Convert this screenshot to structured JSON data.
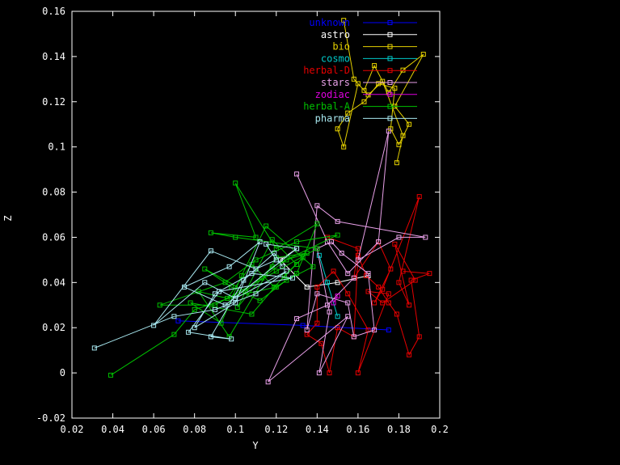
{
  "chart_data": {
    "type": "line",
    "title": "",
    "xlabel": "Y",
    "ylabel": "Z",
    "xlim": [
      0.02,
      0.2
    ],
    "ylim": [
      -0.02,
      0.16
    ],
    "x_ticks": [
      "0.02",
      "0.04",
      "0.06",
      "0.08",
      "0.1",
      "0.12",
      "0.14",
      "0.16",
      "0.18",
      "0.2"
    ],
    "y_ticks": [
      "-0.02",
      "0",
      "0.02",
      "0.04",
      "0.06",
      "0.08",
      "0.1",
      "0.12",
      "0.14",
      "0.16"
    ],
    "grid": false,
    "legend_position": "top-right",
    "background": "#000000",
    "series": [
      {
        "name": "unknown",
        "color": "#0000ff",
        "points": [
          [
            0.072,
            0.023
          ],
          [
            0.133,
            0.021
          ],
          [
            0.175,
            0.019
          ]
        ]
      },
      {
        "name": "astro",
        "color": "#ffffff",
        "points": [
          [
            0.13,
            0.055
          ],
          [
            0.122,
            0.05
          ],
          [
            0.135,
            0.038
          ],
          [
            0.15,
            0.04
          ],
          [
            0.165,
            0.043
          ]
        ]
      },
      {
        "name": "bio",
        "color": "#e5d100",
        "points": [
          [
            0.153,
            0.156
          ],
          [
            0.158,
            0.13
          ],
          [
            0.163,
            0.125
          ],
          [
            0.168,
            0.136
          ],
          [
            0.175,
            0.124
          ],
          [
            0.182,
            0.134
          ],
          [
            0.192,
            0.141
          ],
          [
            0.178,
            0.118
          ],
          [
            0.185,
            0.11
          ],
          [
            0.18,
            0.101
          ],
          [
            0.176,
            0.108
          ],
          [
            0.178,
            0.126
          ],
          [
            0.17,
            0.128
          ],
          [
            0.163,
            0.12
          ],
          [
            0.155,
            0.115
          ],
          [
            0.15,
            0.108
          ],
          [
            0.153,
            0.1
          ],
          [
            0.16,
            0.128
          ],
          [
            0.165,
            0.123
          ],
          [
            0.172,
            0.129
          ],
          [
            0.182,
            0.105
          ],
          [
            0.179,
            0.093
          ]
        ]
      },
      {
        "name": "cosmo",
        "color": "#00c8c8",
        "points": [
          [
            0.15,
            0.025
          ],
          [
            0.145,
            0.04
          ],
          [
            0.141,
            0.052
          ]
        ]
      },
      {
        "name": "herbal-D",
        "color": "#e60000",
        "points": [
          [
            0.145,
            0.06
          ],
          [
            0.16,
            0.055
          ],
          [
            0.158,
            0.042
          ],
          [
            0.17,
            0.058
          ],
          [
            0.176,
            0.046
          ],
          [
            0.168,
            0.031
          ],
          [
            0.172,
            0.037
          ],
          [
            0.19,
            0.078
          ],
          [
            0.18,
            0.04
          ],
          [
            0.185,
            0.03
          ],
          [
            0.178,
            0.057
          ],
          [
            0.188,
            0.041
          ],
          [
            0.172,
            0.031
          ],
          [
            0.165,
            0.036
          ],
          [
            0.175,
            0.035
          ],
          [
            0.16,
            0.0
          ],
          [
            0.165,
            0.019
          ],
          [
            0.155,
            0.035
          ],
          [
            0.148,
            0.045
          ],
          [
            0.14,
            0.038
          ],
          [
            0.14,
            0.022
          ],
          [
            0.135,
            0.017
          ],
          [
            0.142,
            0.013
          ],
          [
            0.146,
            0.0
          ],
          [
            0.15,
            0.02
          ],
          [
            0.158,
            0.016
          ],
          [
            0.16,
            0.052
          ],
          [
            0.164,
            0.043
          ],
          [
            0.17,
            0.038
          ],
          [
            0.175,
            0.031
          ],
          [
            0.179,
            0.026
          ],
          [
            0.185,
            0.008
          ],
          [
            0.19,
            0.016
          ],
          [
            0.186,
            0.041
          ],
          [
            0.195,
            0.044
          ],
          [
            0.182,
            0.045
          ]
        ]
      },
      {
        "name": "stars",
        "color": "#e8a0e8",
        "points": [
          [
            0.13,
            0.088
          ],
          [
            0.145,
            0.058
          ],
          [
            0.155,
            0.044
          ],
          [
            0.17,
            0.058
          ],
          [
            0.175,
            0.107
          ],
          [
            0.16,
            0.05
          ],
          [
            0.18,
            0.06
          ],
          [
            0.193,
            0.06
          ],
          [
            0.15,
            0.067
          ],
          [
            0.14,
            0.074
          ],
          [
            0.135,
            0.019
          ],
          [
            0.14,
            0.035
          ],
          [
            0.155,
            0.031
          ],
          [
            0.158,
            0.016
          ],
          [
            0.168,
            0.019
          ],
          [
            0.165,
            0.044
          ],
          [
            0.152,
            0.053
          ],
          [
            0.147,
            0.058
          ],
          [
            0.14,
            0.055
          ],
          [
            0.146,
            0.027
          ],
          [
            0.141,
            0.0
          ],
          [
            0.155,
            0.025
          ],
          [
            0.116,
            -0.004
          ],
          [
            0.13,
            0.024
          ],
          [
            0.145,
            0.03
          ],
          [
            0.158,
            0.042
          ]
        ]
      },
      {
        "name": "zodiac",
        "color": "#e000e0",
        "points": [
          [
            0.15,
            0.034
          ],
          [
            0.148,
            0.031
          ]
        ]
      },
      {
        "name": "herbal-A",
        "color": "#00c000",
        "points": [
          [
            0.039,
            -0.001
          ],
          [
            0.07,
            0.017
          ],
          [
            0.08,
            0.028
          ],
          [
            0.1,
            0.034
          ],
          [
            0.12,
            0.038
          ],
          [
            0.13,
            0.044
          ],
          [
            0.14,
            0.066
          ],
          [
            0.12,
            0.055
          ],
          [
            0.1,
            0.084
          ],
          [
            0.11,
            0.06
          ],
          [
            0.088,
            0.062
          ],
          [
            0.1,
            0.06
          ],
          [
            0.14,
            0.055
          ],
          [
            0.12,
            0.045
          ],
          [
            0.09,
            0.03
          ],
          [
            0.063,
            0.03
          ],
          [
            0.095,
            0.04
          ],
          [
            0.11,
            0.05
          ],
          [
            0.13,
            0.058
          ],
          [
            0.15,
            0.061
          ],
          [
            0.118,
            0.047
          ],
          [
            0.105,
            0.036
          ],
          [
            0.085,
            0.046
          ],
          [
            0.098,
            0.038
          ],
          [
            0.112,
            0.032
          ],
          [
            0.125,
            0.041
          ],
          [
            0.138,
            0.047
          ],
          [
            0.115,
            0.065
          ],
          [
            0.103,
            0.043
          ],
          [
            0.093,
            0.022
          ],
          [
            0.078,
            0.031
          ],
          [
            0.108,
            0.026
          ],
          [
            0.124,
            0.043
          ],
          [
            0.133,
            0.051
          ],
          [
            0.119,
            0.038
          ],
          [
            0.108,
            0.048
          ],
          [
            0.096,
            0.033
          ],
          [
            0.082,
            0.036
          ],
          [
            0.097,
            0.016
          ],
          [
            0.12,
            0.051
          ],
          [
            0.135,
            0.053
          ],
          [
            0.125,
            0.05
          ],
          [
            0.113,
            0.042
          ],
          [
            0.101,
            0.029
          ],
          [
            0.118,
            0.059
          ],
          [
            0.13,
            0.048
          ]
        ]
      },
      {
        "name": "pharma",
        "color": "#a8e8f0",
        "points": [
          [
            0.031,
            0.011
          ],
          [
            0.07,
            0.025
          ],
          [
            0.09,
            0.028
          ],
          [
            0.11,
            0.035
          ],
          [
            0.125,
            0.045
          ],
          [
            0.1,
            0.033
          ],
          [
            0.085,
            0.04
          ],
          [
            0.06,
            0.021
          ],
          [
            0.088,
            0.054
          ],
          [
            0.11,
            0.046
          ],
          [
            0.12,
            0.05
          ],
          [
            0.115,
            0.057
          ],
          [
            0.13,
            0.055
          ],
          [
            0.095,
            0.03
          ],
          [
            0.075,
            0.038
          ],
          [
            0.097,
            0.047
          ],
          [
            0.112,
            0.058
          ],
          [
            0.1,
            0.031
          ],
          [
            0.08,
            0.02
          ],
          [
            0.09,
            0.035
          ],
          [
            0.108,
            0.044
          ],
          [
            0.128,
            0.042
          ],
          [
            0.092,
            0.036
          ],
          [
            0.077,
            0.018
          ],
          [
            0.098,
            0.015
          ],
          [
            0.088,
            0.016
          ],
          [
            0.104,
            0.041
          ],
          [
            0.119,
            0.053
          ],
          [
            0.123,
            0.047
          ]
        ]
      }
    ]
  }
}
